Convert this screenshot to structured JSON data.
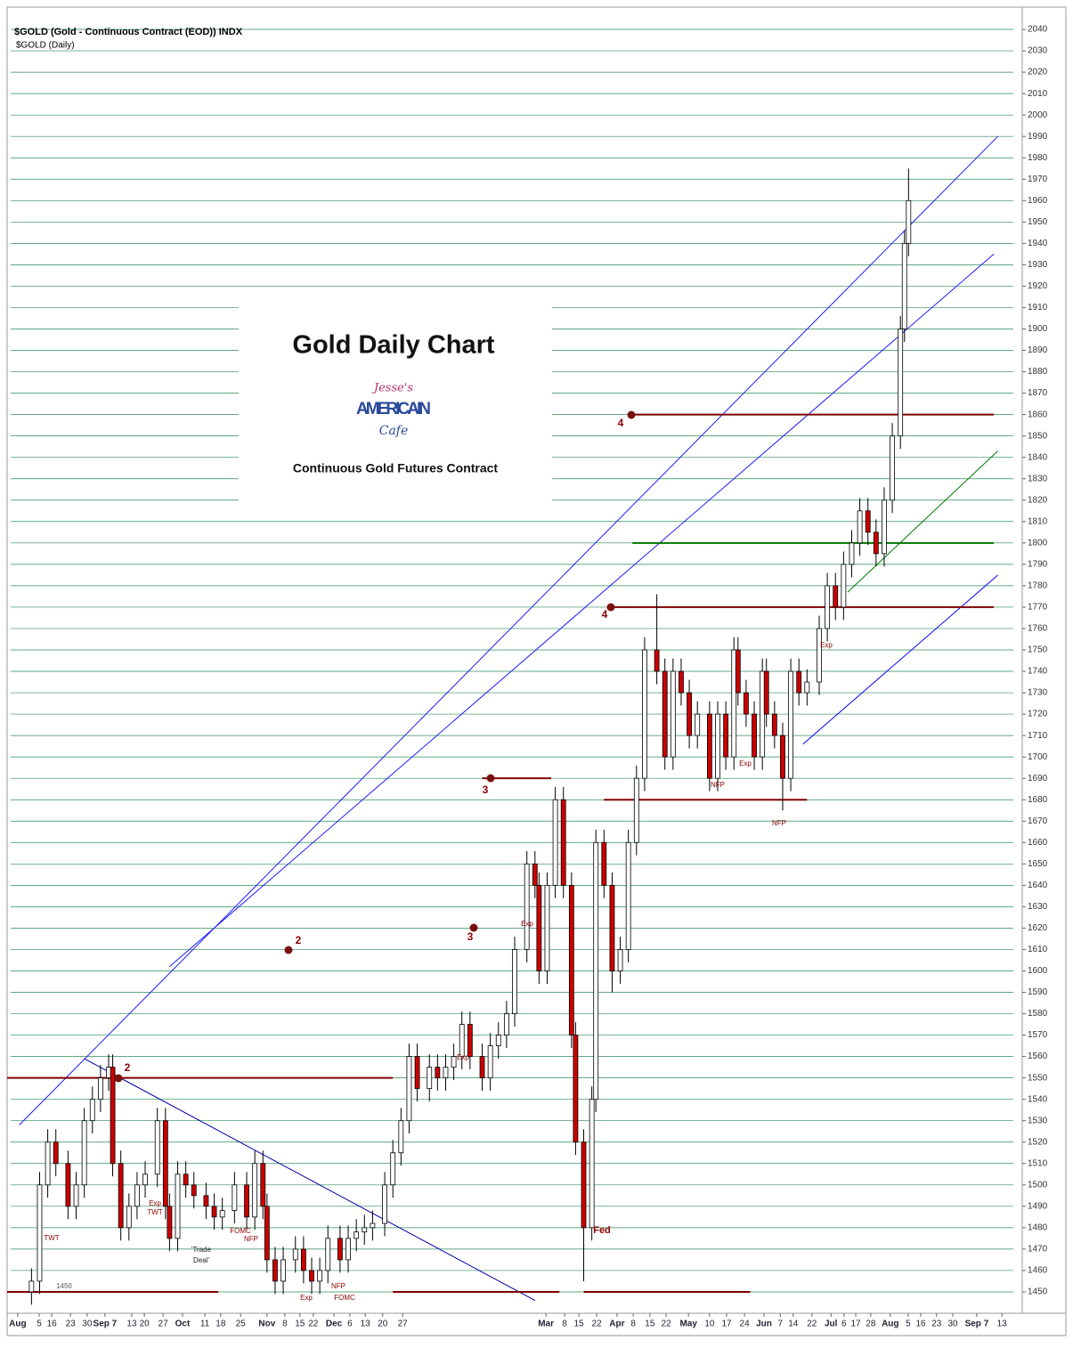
{
  "chart_data": {
    "type": "candlestick",
    "header": "$GOLD (Gold - Continuous Contract (EOD)) INDX",
    "subheader": "$GOLD (Daily)",
    "title": "Gold Daily Chart",
    "subtitle": "Continuous Gold Futures Contract",
    "logo": [
      "Jesse's",
      "AMERICAIN",
      "Cafe"
    ],
    "x": [
      6,
      8,
      10,
      12,
      15,
      17,
      19,
      21,
      23,
      25,
      26,
      28,
      30,
      32,
      34,
      37,
      39,
      40,
      42,
      44,
      46,
      49,
      51,
      53,
      56,
      59,
      61,
      63,
      64,
      66,
      68,
      71,
      73,
      75,
      77,
      79,
      82,
      84,
      86,
      88,
      90,
      93,
      95,
      97,
      99,
      101,
      104,
      106,
      108,
      110,
      112,
      114,
      117,
      119,
      121,
      123,
      125,
      128,
      130,
      131,
      133,
      135,
      137,
      139,
      140,
      142,
      144,
      145,
      147,
      149,
      151,
      153,
      155,
      157,
      160,
      162,
      164,
      166,
      168,
      170,
      173,
      175,
      177,
      179,
      180,
      182,
      184,
      186,
      187,
      189,
      191,
      193,
      195,
      197,
      200,
      202,
      204,
      206,
      208,
      210,
      212,
      214,
      216,
      218,
      220,
      221,
      222
    ],
    "open": [
      1450,
      1455,
      1500,
      1520,
      1510,
      1490,
      1500,
      1530,
      1540,
      1550,
      1555,
      1510,
      1480,
      1490,
      1500,
      1505,
      1530,
      1490,
      1475,
      1505,
      1500,
      1495,
      1490,
      1485,
      1488,
      1500,
      1485,
      1510,
      1490,
      1465,
      1455,
      1465,
      1470,
      1460,
      1455,
      1460,
      1475,
      1465,
      1475,
      1478,
      1480,
      1482,
      1500,
      1515,
      1530,
      1560,
      1545,
      1555,
      1550,
      1555,
      1560,
      1575,
      1560,
      1550,
      1565,
      1570,
      1580,
      1610,
      1650,
      1640,
      1600,
      1640,
      1680,
      1640,
      1570,
      1520,
      1480,
      1540,
      1660,
      1640,
      1600,
      1610,
      1660,
      1690,
      1750,
      1740,
      1700,
      1740,
      1730,
      1710,
      1720,
      1690,
      1720,
      1700,
      1750,
      1730,
      1720,
      1700,
      1740,
      1720,
      1710,
      1690,
      1740,
      1730,
      1735,
      1760,
      1780,
      1770,
      1790,
      1800,
      1815,
      1805,
      1795,
      1820,
      1850,
      1900,
      1940
    ],
    "high": [
      1461,
      1506,
      1526,
      1526,
      1516,
      1506,
      1536,
      1546,
      1556,
      1561,
      1561,
      1516,
      1496,
      1506,
      1511,
      1536,
      1536,
      1496,
      1511,
      1511,
      1506,
      1501,
      1496,
      1494,
      1506,
      1506,
      1516,
      1516,
      1496,
      1471,
      1471,
      1476,
      1476,
      1466,
      1466,
      1481,
      1481,
      1481,
      1484,
      1486,
      1488,
      1506,
      1521,
      1536,
      1566,
      1566,
      1561,
      1561,
      1561,
      1566,
      1581,
      1581,
      1566,
      1571,
      1576,
      1586,
      1616,
      1656,
      1656,
      1646,
      1646,
      1686,
      1686,
      1646,
      1576,
      1526,
      1546,
      1666,
      1666,
      1646,
      1616,
      1666,
      1696,
      1756,
      1776,
      1746,
      1746,
      1746,
      1736,
      1726,
      1726,
      1726,
      1726,
      1756,
      1756,
      1736,
      1726,
      1746,
      1746,
      1726,
      1716,
      1746,
      1746,
      1741,
      1766,
      1786,
      1786,
      1796,
      1806,
      1821,
      1821,
      1811,
      1826,
      1856,
      1906,
      1946,
      1975
    ],
    "low": [
      1444,
      1449,
      1494,
      1504,
      1484,
      1484,
      1494,
      1524,
      1534,
      1544,
      1504,
      1474,
      1474,
      1484,
      1494,
      1499,
      1484,
      1469,
      1469,
      1494,
      1489,
      1484,
      1479,
      1479,
      1482,
      1479,
      1479,
      1484,
      1459,
      1449,
      1449,
      1459,
      1454,
      1449,
      1449,
      1454,
      1459,
      1459,
      1469,
      1472,
      1474,
      1476,
      1494,
      1509,
      1524,
      1539,
      1539,
      1544,
      1544,
      1549,
      1554,
      1554,
      1544,
      1544,
      1559,
      1564,
      1574,
      1604,
      1634,
      1594,
      1594,
      1634,
      1634,
      1564,
      1514,
      1455,
      1474,
      1534,
      1634,
      1590,
      1594,
      1604,
      1654,
      1684,
      1734,
      1694,
      1694,
      1724,
      1704,
      1704,
      1684,
      1684,
      1694,
      1694,
      1724,
      1714,
      1694,
      1694,
      1714,
      1704,
      1675,
      1684,
      1724,
      1724,
      1729,
      1754,
      1764,
      1764,
      1784,
      1794,
      1799,
      1789,
      1789,
      1814,
      1844,
      1894,
      1934
    ],
    "close": [
      1455,
      1500,
      1520,
      1510,
      1490,
      1500,
      1530,
      1540,
      1550,
      1555,
      1510,
      1480,
      1490,
      1500,
      1505,
      1530,
      1490,
      1475,
      1505,
      1500,
      1495,
      1490,
      1485,
      1488,
      1500,
      1485,
      1510,
      1490,
      1465,
      1455,
      1465,
      1470,
      1460,
      1455,
      1460,
      1475,
      1465,
      1475,
      1478,
      1480,
      1482,
      1500,
      1515,
      1530,
      1560,
      1545,
      1555,
      1550,
      1555,
      1560,
      1575,
      1560,
      1550,
      1565,
      1570,
      1580,
      1610,
      1650,
      1640,
      1600,
      1640,
      1680,
      1640,
      1570,
      1520,
      1480,
      1540,
      1660,
      1640,
      1600,
      1610,
      1660,
      1690,
      1750,
      1740,
      1700,
      1740,
      1730,
      1710,
      1720,
      1690,
      1720,
      1700,
      1750,
      1730,
      1720,
      1700,
      1740,
      1720,
      1710,
      1690,
      1740,
      1730,
      1735,
      1760,
      1780,
      1770,
      1790,
      1800,
      1815,
      1805,
      1795,
      1820,
      1850,
      1900,
      1940,
      1960
    ],
    "up_color": "#ffffff",
    "down_color": "#cc0000",
    "xlim": [
      0,
      250
    ],
    "xticks": [
      {
        "value": 2.6,
        "label": "Aug"
      },
      {
        "value": 7.9,
        "label": "5"
      },
      {
        "value": 11,
        "label": "16"
      },
      {
        "value": 15.6,
        "label": "23"
      },
      {
        "value": 19.7,
        "label": "30"
      },
      {
        "value": 24.1,
        "label": "Sep 7"
      },
      {
        "value": 30.7,
        "label": "13"
      },
      {
        "value": 33.8,
        "label": "20"
      },
      {
        "value": 38.4,
        "label": "27"
      },
      {
        "value": 43.2,
        "label": "Oct"
      },
      {
        "value": 48.7,
        "label": "11"
      },
      {
        "value": 52.6,
        "label": "18"
      },
      {
        "value": 57.5,
        "label": "25"
      },
      {
        "value": 64,
        "label": "Nov"
      },
      {
        "value": 68.4,
        "label": "8"
      },
      {
        "value": 72.1,
        "label": "15"
      },
      {
        "value": 75.4,
        "label": "22"
      },
      {
        "value": 80.5,
        "label": "Dec"
      },
      {
        "value": 84.4,
        "label": "6"
      },
      {
        "value": 88.2,
        "label": "13"
      },
      {
        "value": 92.5,
        "label": "20"
      },
      {
        "value": 97.4,
        "label": "27"
      },
      {
        "value": 132.7,
        "label": "Mar"
      },
      {
        "value": 137.3,
        "label": "8"
      },
      {
        "value": 140.8,
        "label": "15"
      },
      {
        "value": 145.2,
        "label": "22"
      },
      {
        "value": 150.2,
        "label": "Apr"
      },
      {
        "value": 154.2,
        "label": "8"
      },
      {
        "value": 158.3,
        "label": "15"
      },
      {
        "value": 162.3,
        "label": "22"
      },
      {
        "value": 167.8,
        "label": "May"
      },
      {
        "value": 173,
        "label": "10"
      },
      {
        "value": 177.2,
        "label": "17"
      },
      {
        "value": 181.6,
        "label": "24"
      },
      {
        "value": 186.4,
        "label": "Jun"
      },
      {
        "value": 190.4,
        "label": "7"
      },
      {
        "value": 193.6,
        "label": "14"
      },
      {
        "value": 198.2,
        "label": "22"
      },
      {
        "value": 202.9,
        "label": "Jul"
      },
      {
        "value": 206.1,
        "label": "6"
      },
      {
        "value": 209,
        "label": "17"
      },
      {
        "value": 212.7,
        "label": "28"
      },
      {
        "value": 217.5,
        "label": "Aug"
      },
      {
        "value": 221.9,
        "label": "5"
      },
      {
        "value": 225,
        "label": "16"
      },
      {
        "value": 228.9,
        "label": "23"
      },
      {
        "value": 232.9,
        "label": "30"
      },
      {
        "value": 238.8,
        "label": "Sep 7"
      },
      {
        "value": 245,
        "label": "13"
      }
    ],
    "ylim": [
      1440,
      2050
    ],
    "yticks": [
      1450,
      1460,
      1470,
      1480,
      1490,
      1500,
      1510,
      1520,
      1530,
      1540,
      1550,
      1560,
      1570,
      1580,
      1590,
      1600,
      1610,
      1620,
      1630,
      1640,
      1650,
      1660,
      1670,
      1680,
      1690,
      1700,
      1710,
      1720,
      1730,
      1740,
      1750,
      1760,
      1770,
      1780,
      1790,
      1800,
      1810,
      1820,
      1830,
      1840,
      1850,
      1860,
      1870,
      1880,
      1890,
      1900,
      1910,
      1920,
      1930,
      1940,
      1950,
      1960,
      1970,
      1980,
      1990,
      2000,
      2010,
      2020,
      2030,
      2040
    ],
    "grid": true,
    "grid_color": "#2e8b57",
    "levels": [
      {
        "value": 1550,
        "x": [
          0,
          95
        ],
        "color": "#800000"
      },
      {
        "value": 1450,
        "x": [
          0,
          52
        ],
        "color": "#800000"
      },
      {
        "value": 1450,
        "x": [
          95,
          136
        ],
        "color": "#800000"
      },
      {
        "value": 1450,
        "x": [
          142,
          183
        ],
        "color": "#800000"
      },
      {
        "value": 1680,
        "x": [
          147,
          197
        ],
        "color": "#800000"
      },
      {
        "value": 1690,
        "x": [
          117,
          134
        ],
        "color": "#800000"
      },
      {
        "value": 1770,
        "x": [
          148,
          243
        ],
        "color": "#800000"
      },
      {
        "value": 1860,
        "x": [
          153,
          243
        ],
        "color": "#800000"
      },
      {
        "value": 1800,
        "x": [
          154,
          243
        ],
        "color": "#007700"
      }
    ],
    "trendlines": [
      {
        "x": [
          3,
          244
        ],
        "y": [
          1528,
          1990
        ],
        "color": "#1a1aff"
      },
      {
        "x": [
          40,
          243
        ],
        "y": [
          1602,
          1935
        ],
        "color": "#1a1aff"
      },
      {
        "x": [
          19,
          130
        ],
        "y": [
          1559,
          1446
        ],
        "color": "#0000aa"
      },
      {
        "x": [
          196,
          244
        ],
        "y": [
          1706,
          1785
        ],
        "color": "#0000ff"
      },
      {
        "x": [
          207,
          244
        ],
        "y": [
          1777,
          1843
        ],
        "color": "#007700"
      }
    ],
    "annotations": [
      "TWT",
      "Exp",
      "TWT",
      "FOMC",
      "NFP",
      "'Trade",
      "Deal'",
      "Exp",
      "NFP",
      "FOMC",
      "Exp",
      "Exp",
      "Fed",
      "Exp",
      "NFP",
      "NFP",
      "Exp",
      "1450",
      "2",
      "2",
      "3",
      "3",
      "4",
      "4"
    ]
  }
}
